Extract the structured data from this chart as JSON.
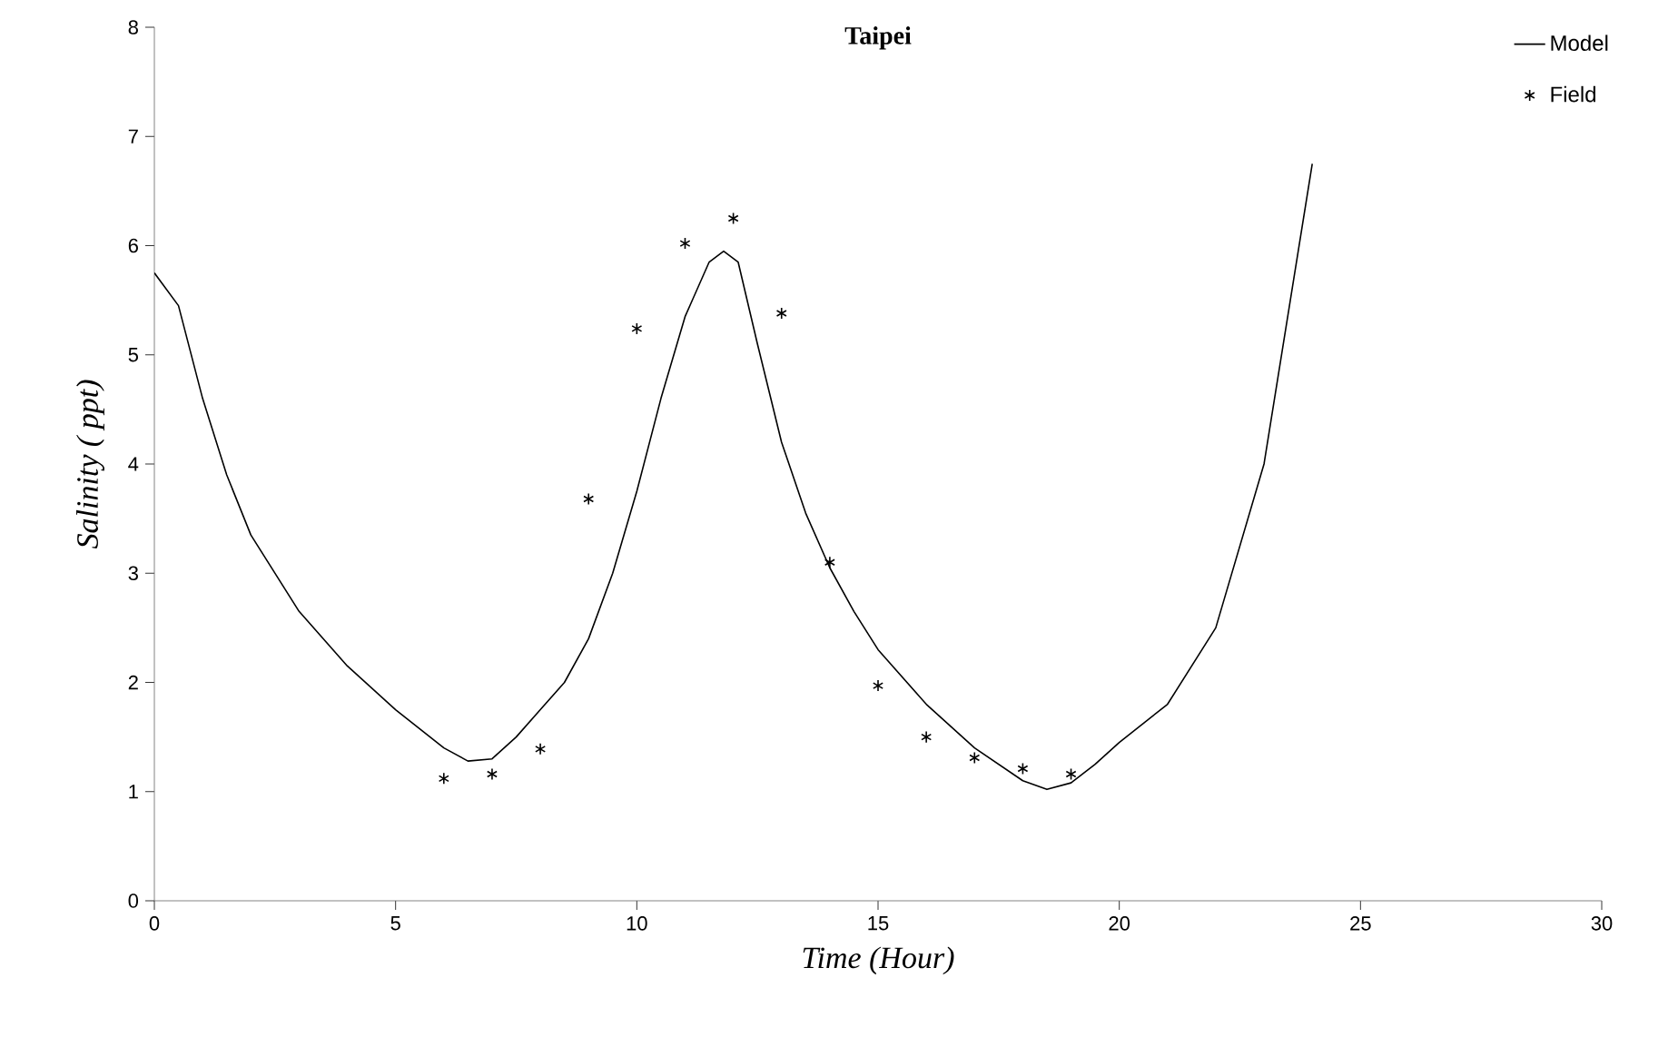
{
  "chart_data": {
    "type": "line",
    "title": "Taipei",
    "xlabel": "Time (Hour)",
    "ylabel": "Salinity ( ppt)",
    "xlim": [
      0,
      30
    ],
    "xticks": [
      0,
      5,
      10,
      15,
      20,
      25,
      30
    ],
    "ylim": [
      0,
      8
    ],
    "yticks": [
      0,
      1,
      2,
      3,
      4,
      5,
      6,
      7,
      8
    ],
    "grid": false,
    "legend": "top right",
    "series": [
      {
        "name": "Model",
        "color": "#000000",
        "marker": "none",
        "line_style": "solid",
        "x": [
          0,
          0.5,
          1,
          1.5,
          2,
          3,
          4,
          5,
          6,
          6.5,
          7,
          7.5,
          8,
          8.5,
          9,
          9.5,
          10,
          10.5,
          11,
          11.5,
          11.8,
          12.1,
          12.5,
          13,
          13.5,
          14,
          14.5,
          15,
          16,
          17,
          18,
          18.5,
          19,
          19.5,
          20,
          21,
          22,
          23,
          24
        ],
        "values": [
          5.75,
          5.45,
          4.6,
          3.9,
          3.35,
          2.65,
          2.15,
          1.75,
          1.4,
          1.28,
          1.3,
          1.5,
          1.75,
          2.0,
          2.4,
          3.0,
          3.75,
          4.6,
          5.35,
          5.85,
          5.95,
          5.85,
          5.1,
          4.2,
          3.55,
          3.05,
          2.65,
          2.3,
          1.8,
          1.4,
          1.1,
          1.02,
          1.08,
          1.25,
          1.45,
          1.8,
          2.5,
          4.0,
          6.75
        ]
      },
      {
        "name": "Field",
        "type": "scatter",
        "color": "#000000",
        "marker": "cross",
        "x": [
          6,
          7,
          8,
          9,
          10,
          11,
          12,
          13,
          14,
          15,
          16,
          17,
          18,
          19
        ],
        "values": [
          1.12,
          1.16,
          1.39,
          3.68,
          5.24,
          6.02,
          6.25,
          5.38,
          3.1,
          1.97,
          1.5,
          1.31,
          1.21,
          1.16
        ]
      }
    ]
  }
}
